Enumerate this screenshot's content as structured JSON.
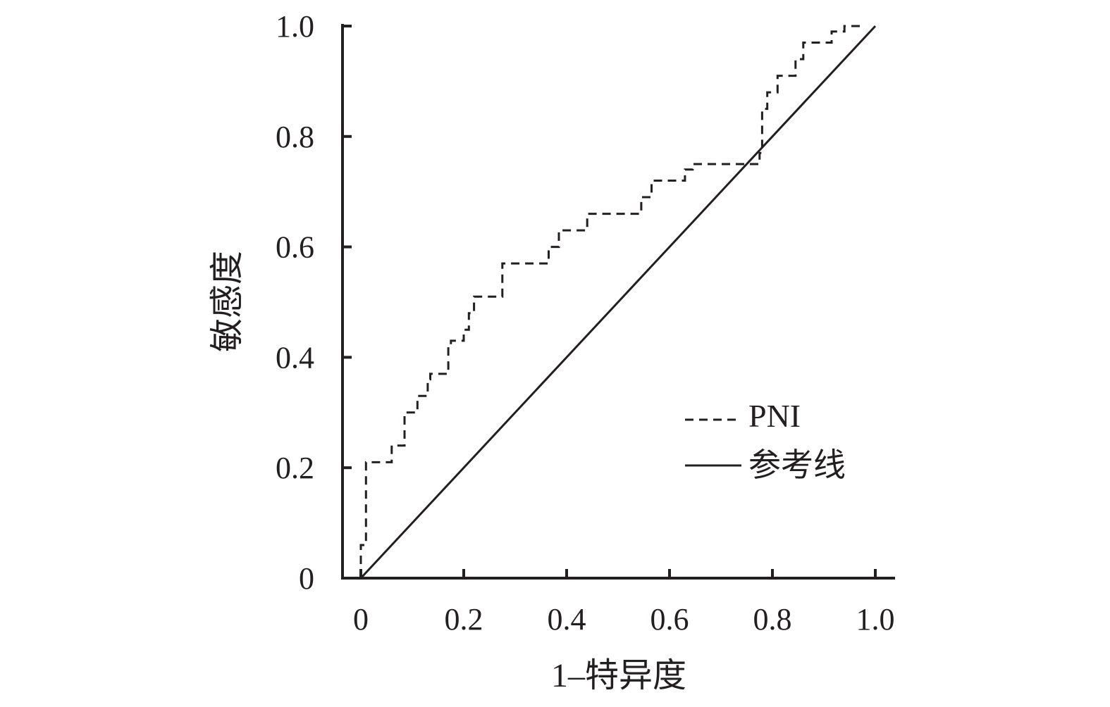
{
  "chart_data": {
    "type": "line",
    "title": "",
    "xlabel": "1–特异度",
    "ylabel": "敏感度",
    "xlim": [
      0,
      1
    ],
    "ylim": [
      0,
      1
    ],
    "x_ticks": [
      "0",
      "0.2",
      "0.4",
      "0.6",
      "0.8",
      "1.0"
    ],
    "y_ticks": [
      "0",
      "0.2",
      "0.4",
      "0.6",
      "0.8",
      "1.0"
    ],
    "grid": false,
    "legend_position": "bottom-right",
    "colors": {
      "line": "#231f20",
      "background": "#ffffff"
    },
    "series": [
      {
        "name": "PNI",
        "style": "dashed",
        "x": [
          0,
          0,
          0.01,
          0.01,
          0.06,
          0.06,
          0.085,
          0.085,
          0.11,
          0.11,
          0.13,
          0.13,
          0.135,
          0.135,
          0.17,
          0.17,
          0.175,
          0.175,
          0.2,
          0.2,
          0.21,
          0.21,
          0.22,
          0.22,
          0.275,
          0.275,
          0.365,
          0.365,
          0.385,
          0.385,
          0.44,
          0.44,
          0.545,
          0.545,
          0.565,
          0.565,
          0.63,
          0.63,
          0.645,
          0.645,
          0.775,
          0.775,
          0.78,
          0.78,
          0.79,
          0.79,
          0.81,
          0.81,
          0.845,
          0.845,
          0.86,
          0.86,
          0.87,
          0.87,
          0.915,
          0.915,
          0.94,
          0.94,
          0.98,
          0.98
        ],
        "y": [
          0,
          0.06,
          0.06,
          0.21,
          0.21,
          0.24,
          0.24,
          0.3,
          0.3,
          0.33,
          0.33,
          0.36,
          0.36,
          0.37,
          0.37,
          0.42,
          0.42,
          0.43,
          0.43,
          0.45,
          0.45,
          0.48,
          0.48,
          0.51,
          0.51,
          0.57,
          0.57,
          0.6,
          0.6,
          0.63,
          0.63,
          0.66,
          0.66,
          0.69,
          0.69,
          0.72,
          0.72,
          0.74,
          0.74,
          0.75,
          0.75,
          0.77,
          0.77,
          0.85,
          0.85,
          0.88,
          0.88,
          0.91,
          0.91,
          0.94,
          0.94,
          0.97,
          0.97,
          0.97,
          0.97,
          0.99,
          0.99,
          1.0,
          1.0,
          1.0
        ]
      },
      {
        "name": "参考线",
        "style": "solid",
        "x": [
          0,
          1
        ],
        "y": [
          0,
          1
        ]
      }
    ]
  }
}
